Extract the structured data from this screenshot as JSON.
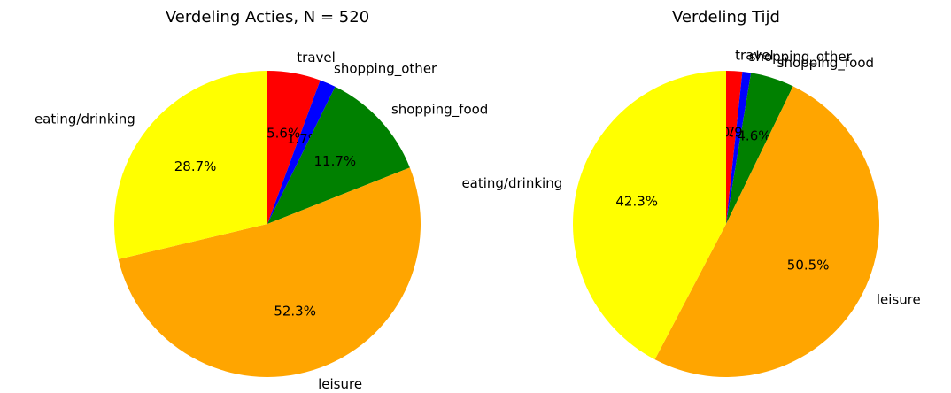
{
  "chart_data": [
    {
      "type": "pie",
      "title": "Verdeling Acties, N = 520",
      "categories": [
        "travel",
        "shopping_other",
        "shopping_food",
        "leisure",
        "eating/drinking"
      ],
      "values": [
        5.6,
        1.7,
        11.7,
        52.3,
        28.7
      ],
      "value_labels": [
        "5.6%",
        "1.7%",
        "11.7%",
        "52.3%",
        "28.7%"
      ],
      "colors": [
        "#ff0000",
        "#0000ff",
        "#008000",
        "#ffa500",
        "#ffff00"
      ]
    },
    {
      "type": "pie",
      "title": "Verdeling Tijd",
      "categories": [
        "travel",
        "shopping_other",
        "shopping_food",
        "leisure",
        "eating/drinking"
      ],
      "values": [
        1.7,
        0.9,
        4.6,
        50.5,
        42.3
      ],
      "value_labels": [
        "1.7%",
        "0.9%",
        "4.6%",
        "50.5%",
        "42.3%"
      ],
      "colors": [
        "#ff0000",
        "#0000ff",
        "#008000",
        "#ffa500",
        "#ffff00"
      ]
    }
  ]
}
